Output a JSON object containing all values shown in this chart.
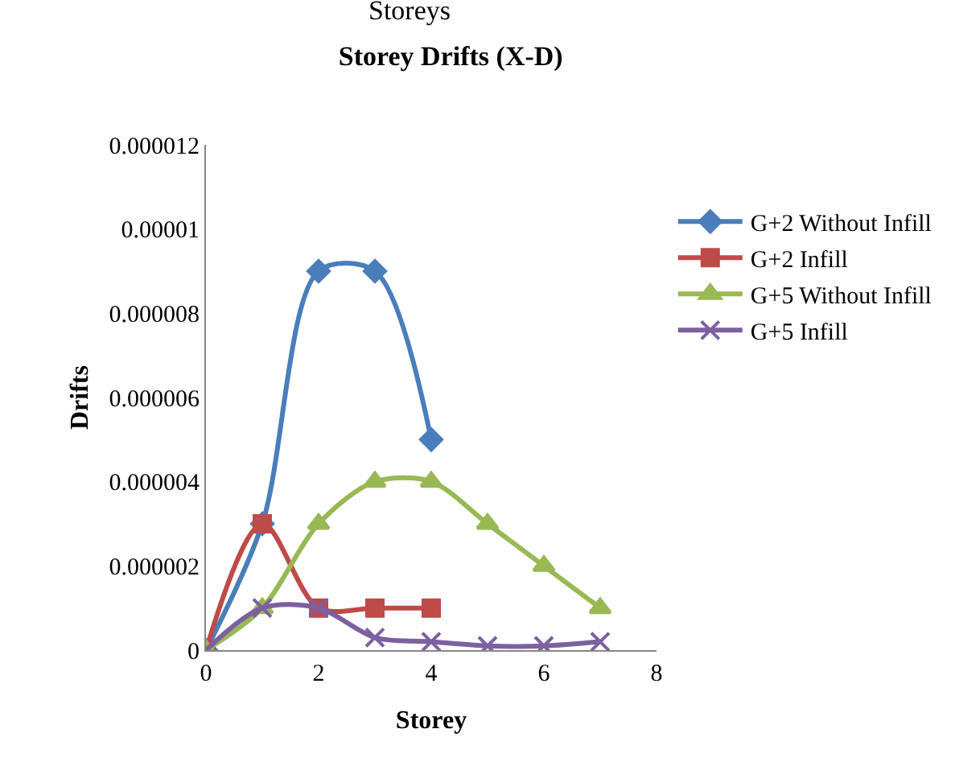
{
  "chart_data": {
    "type": "line",
    "title": "Storey Drifts (X-D)",
    "xlabel": "Storey",
    "ylabel": "Drifts",
    "annotations": [
      "Storeys"
    ],
    "x": [
      0,
      1,
      2,
      3,
      4,
      5,
      6,
      7
    ],
    "xlim": [
      0,
      8
    ],
    "xticks": [
      0,
      2,
      4,
      6,
      8
    ],
    "ylim": [
      0,
      1.2e-05
    ],
    "yticks": [
      {
        "value": 0,
        "label": "0"
      },
      {
        "value": 2e-06,
        "label": "0.000002"
      },
      {
        "value": 4e-06,
        "label": "0.000004"
      },
      {
        "value": 6e-06,
        "label": "0.000006"
      },
      {
        "value": 8e-06,
        "label": "0.000008"
      },
      {
        "value": 1e-05,
        "label": "0.00001"
      },
      {
        "value": 1.2e-05,
        "label": "0.000012"
      }
    ],
    "legend": "right",
    "series": [
      {
        "name": "G+2 Without Infill",
        "color": "#4a7ebb",
        "marker": "diamond",
        "x": [
          0,
          1,
          2,
          3,
          4
        ],
        "values": [
          0,
          3e-06,
          9e-06,
          9e-06,
          5e-06
        ]
      },
      {
        "name": "G+2 Infill",
        "color": "#be4b48",
        "marker": "square",
        "x": [
          0,
          1,
          2,
          3,
          4
        ],
        "values": [
          0,
          3e-06,
          1e-06,
          1e-06,
          1e-06
        ]
      },
      {
        "name": "G+5 Without Infill",
        "color": "#98b954",
        "marker": "triangle",
        "values": [
          0,
          1e-06,
          3e-06,
          4e-06,
          4e-06,
          3e-06,
          2e-06,
          1e-06
        ]
      },
      {
        "name": "G+5 Infill",
        "color": "#7d60a0",
        "marker": "cross",
        "values": [
          0,
          1e-06,
          1e-06,
          3e-07,
          2e-07,
          1e-07,
          1e-07,
          2e-07
        ]
      }
    ]
  }
}
